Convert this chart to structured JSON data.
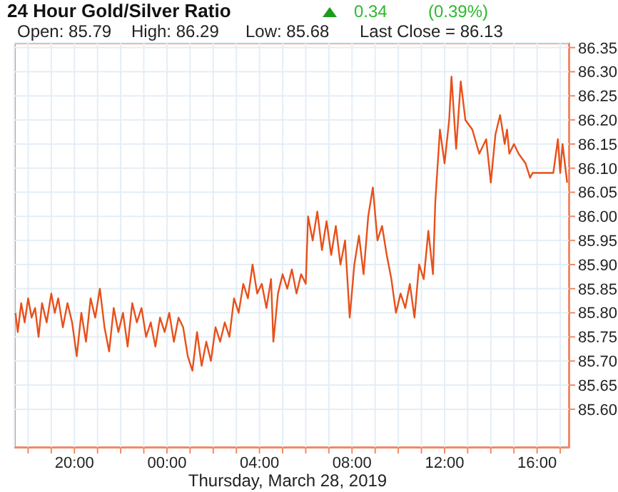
{
  "chart_data": {
    "type": "line",
    "title": "24 Hour Gold/Silver Ratio",
    "xlabel": "Thursday, March 28, 2019",
    "annotations": [
      "0.34",
      "(0.39%)",
      "Open: 85.79",
      "High: 86.29",
      "Low: 85.68",
      "Last Close = 86.13"
    ],
    "x": [
      "2019-03-27T17:27",
      "2019-03-27T17:33",
      "2019-03-27T17:42",
      "2019-03-27T17:51",
      "2019-03-27T18:00",
      "2019-03-27T18:09",
      "2019-03-27T18:18",
      "2019-03-27T18:27",
      "2019-03-27T18:36",
      "2019-03-27T18:48",
      "2019-03-27T19:00",
      "2019-03-27T19:09",
      "2019-03-27T19:18",
      "2019-03-27T19:30",
      "2019-03-27T19:42",
      "2019-03-27T19:54",
      "2019-03-27T20:06",
      "2019-03-27T20:18",
      "2019-03-27T20:30",
      "2019-03-27T20:42",
      "2019-03-27T20:54",
      "2019-03-27T21:06",
      "2019-03-27T21:18",
      "2019-03-27T21:30",
      "2019-03-27T21:42",
      "2019-03-27T21:54",
      "2019-03-27T22:06",
      "2019-03-27T22:18",
      "2019-03-27T22:30",
      "2019-03-27T22:42",
      "2019-03-27T22:54",
      "2019-03-27T23:06",
      "2019-03-27T23:18",
      "2019-03-27T23:30",
      "2019-03-27T23:42",
      "2019-03-27T23:54",
      "2019-03-28T00:06",
      "2019-03-28T00:18",
      "2019-03-28T00:30",
      "2019-03-28T00:42",
      "2019-03-28T00:54",
      "2019-03-28T01:06",
      "2019-03-28T01:18",
      "2019-03-28T01:30",
      "2019-03-28T01:42",
      "2019-03-28T01:54",
      "2019-03-28T02:06",
      "2019-03-28T02:18",
      "2019-03-28T02:30",
      "2019-03-28T02:42",
      "2019-03-28T02:54",
      "2019-03-28T03:06",
      "2019-03-28T03:18",
      "2019-03-28T03:30",
      "2019-03-28T03:42",
      "2019-03-28T03:54",
      "2019-03-28T04:06",
      "2019-03-28T04:18",
      "2019-03-28T04:30",
      "2019-03-28T04:36",
      "2019-03-28T04:48",
      "2019-03-28T05:00",
      "2019-03-28T05:12",
      "2019-03-28T05:24",
      "2019-03-28T05:36",
      "2019-03-28T05:48",
      "2019-03-28T06:00",
      "2019-03-28T06:06",
      "2019-03-28T06:18",
      "2019-03-28T06:30",
      "2019-03-28T06:42",
      "2019-03-28T06:54",
      "2019-03-28T07:06",
      "2019-03-28T07:18",
      "2019-03-28T07:30",
      "2019-03-28T07:42",
      "2019-03-28T07:54",
      "2019-03-28T08:06",
      "2019-03-28T08:18",
      "2019-03-28T08:30",
      "2019-03-28T08:42",
      "2019-03-28T08:54",
      "2019-03-28T09:06",
      "2019-03-28T09:18",
      "2019-03-28T09:30",
      "2019-03-28T09:42",
      "2019-03-28T09:54",
      "2019-03-28T10:06",
      "2019-03-28T10:18",
      "2019-03-28T10:30",
      "2019-03-28T10:42",
      "2019-03-28T10:54",
      "2019-03-28T11:06",
      "2019-03-28T11:18",
      "2019-03-28T11:30",
      "2019-03-28T11:36",
      "2019-03-28T11:48",
      "2019-03-28T12:00",
      "2019-03-28T12:12",
      "2019-03-28T12:18",
      "2019-03-28T12:30",
      "2019-03-28T12:42",
      "2019-03-28T12:54",
      "2019-03-28T13:12",
      "2019-03-28T13:30",
      "2019-03-28T13:48",
      "2019-03-28T14:00",
      "2019-03-28T14:12",
      "2019-03-28T14:24",
      "2019-03-28T14:36",
      "2019-03-28T14:42",
      "2019-03-28T14:48",
      "2019-03-28T15:00",
      "2019-03-28T15:12",
      "2019-03-28T15:30",
      "2019-03-28T15:42",
      "2019-03-28T15:48",
      "2019-03-28T16:42",
      "2019-03-28T16:54",
      "2019-03-28T17:00",
      "2019-03-28T17:06",
      "2019-03-28T17:18"
    ],
    "series": [
      {
        "color": "#e8501a",
        "values": [
          85.8,
          85.76,
          85.82,
          85.78,
          85.83,
          85.79,
          85.81,
          85.75,
          85.82,
          85.78,
          85.84,
          85.8,
          85.83,
          85.77,
          85.82,
          85.78,
          85.71,
          85.8,
          85.74,
          85.83,
          85.79,
          85.85,
          85.77,
          85.72,
          85.81,
          85.76,
          85.8,
          85.73,
          85.82,
          85.78,
          85.81,
          85.75,
          85.78,
          85.73,
          85.79,
          85.76,
          85.8,
          85.74,
          85.79,
          85.77,
          85.71,
          85.68,
          85.76,
          85.69,
          85.74,
          85.7,
          85.77,
          85.74,
          85.78,
          85.75,
          85.83,
          85.8,
          85.86,
          85.83,
          85.9,
          85.84,
          85.86,
          85.81,
          85.87,
          85.74,
          85.84,
          85.88,
          85.85,
          85.89,
          85.84,
          85.88,
          85.86,
          86.0,
          85.95,
          86.01,
          85.93,
          85.99,
          85.92,
          85.98,
          85.9,
          85.95,
          85.79,
          85.9,
          85.96,
          85.88,
          86.0,
          86.06,
          85.95,
          85.98,
          85.92,
          85.87,
          85.8,
          85.84,
          85.81,
          85.86,
          85.79,
          85.9,
          85.87,
          85.97,
          85.88,
          86.03,
          86.18,
          86.11,
          86.2,
          86.29,
          86.14,
          86.28,
          86.2,
          86.18,
          86.13,
          86.16,
          86.07,
          86.17,
          86.21,
          86.15,
          86.18,
          86.13,
          86.15,
          86.13,
          86.11,
          86.08,
          86.09,
          86.09,
          86.16,
          86.09,
          86.15,
          86.07
        ]
      }
    ],
    "xlim": [
      "2019-03-27T17:24",
      "2019-03-28T17:24"
    ],
    "xticks": [
      {
        "value": "2019-03-27T18:00",
        "label": null
      },
      {
        "value": "2019-03-27T19:00",
        "label": null
      },
      {
        "value": "2019-03-27T20:00",
        "label": "20:00"
      },
      {
        "value": "2019-03-27T21:00",
        "label": null
      },
      {
        "value": "2019-03-27T22:00",
        "label": null
      },
      {
        "value": "2019-03-27T23:00",
        "label": null
      },
      {
        "value": "2019-03-28T00:00",
        "label": "00:00"
      },
      {
        "value": "2019-03-28T01:00",
        "label": null
      },
      {
        "value": "2019-03-28T02:00",
        "label": null
      },
      {
        "value": "2019-03-28T03:00",
        "label": null
      },
      {
        "value": "2019-03-28T04:00",
        "label": "04:00"
      },
      {
        "value": "2019-03-28T05:00",
        "label": null
      },
      {
        "value": "2019-03-28T06:00",
        "label": null
      },
      {
        "value": "2019-03-28T07:00",
        "label": null
      },
      {
        "value": "2019-03-28T08:00",
        "label": "08:00"
      },
      {
        "value": "2019-03-28T09:00",
        "label": null
      },
      {
        "value": "2019-03-28T10:00",
        "label": null
      },
      {
        "value": "2019-03-28T11:00",
        "label": null
      },
      {
        "value": "2019-03-28T12:00",
        "label": "12:00"
      },
      {
        "value": "2019-03-28T13:00",
        "label": null
      },
      {
        "value": "2019-03-28T14:00",
        "label": null
      },
      {
        "value": "2019-03-28T15:00",
        "label": null
      },
      {
        "value": "2019-03-28T16:00",
        "label": "16:00"
      },
      {
        "value": "2019-03-28T17:00",
        "label": null
      }
    ],
    "ylim": [
      85.52,
      86.36
    ],
    "yticks": [
      {
        "value": 85.6,
        "label": "85.60"
      },
      85.65,
      {
        "value": 85.7,
        "label": "85.70"
      },
      85.75,
      {
        "value": 85.8,
        "label": "85.80"
      },
      85.85,
      {
        "value": 85.9,
        "label": "85.90"
      },
      85.95,
      {
        "value": 86.0,
        "label": "86.00"
      },
      86.05,
      {
        "value": 86.1,
        "label": "86.10"
      },
      86.15,
      {
        "value": 86.2,
        "label": "86.20"
      },
      86.25,
      {
        "value": 86.3,
        "label": "86.30"
      },
      86.35
    ],
    "grid": true,
    "legend": false,
    "marker": "none",
    "line_style": "solid"
  }
}
